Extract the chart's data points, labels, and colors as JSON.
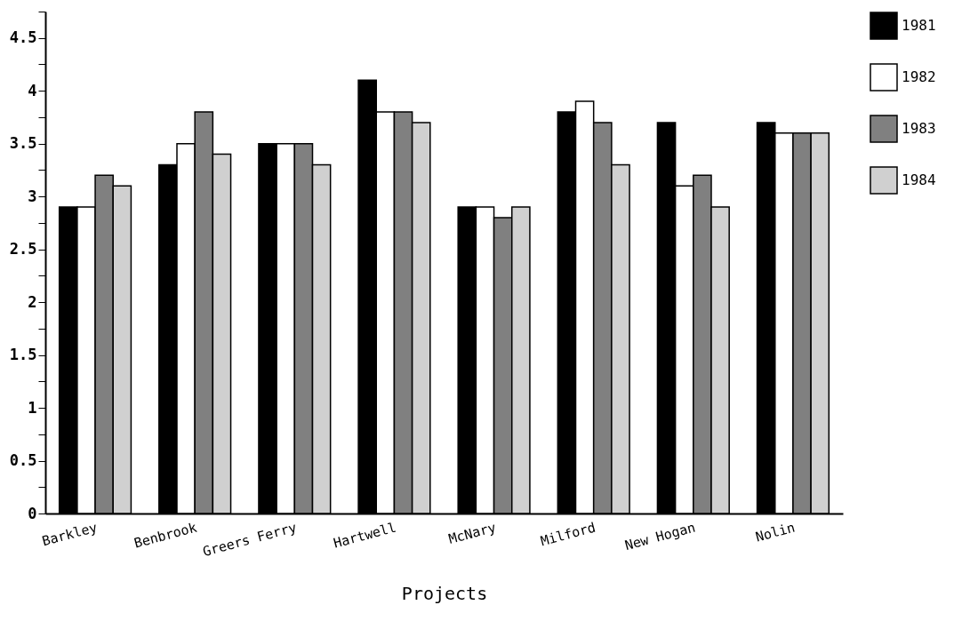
{
  "chart_data": {
    "type": "bar",
    "xlabel": "Projects",
    "categories": [
      "Barkley",
      "Benbrook",
      "Greers Ferry",
      "Hartwell",
      "McNary",
      "Milford",
      "New Hogan",
      "Nolin"
    ],
    "series": [
      {
        "name": "1981",
        "color": "#000000",
        "values": [
          2.9,
          3.3,
          3.5,
          4.1,
          2.9,
          3.8,
          3.7,
          3.7
        ]
      },
      {
        "name": "1982",
        "color": "#ffffff",
        "values": [
          2.9,
          3.5,
          3.5,
          3.8,
          2.9,
          3.9,
          3.1,
          3.6
        ]
      },
      {
        "name": "1983",
        "color": "#808080",
        "values": [
          3.2,
          3.8,
          3.5,
          3.8,
          2.8,
          3.7,
          3.2,
          3.6
        ]
      },
      {
        "name": "1984",
        "color": "#d0d0d0",
        "values": [
          3.1,
          3.4,
          3.3,
          3.7,
          2.9,
          3.3,
          2.9,
          3.6
        ]
      }
    ],
    "ylim": [
      0,
      4.75
    ],
    "yticks": [
      0,
      {
        "value": 0.25,
        "label": null
      },
      0.5,
      {
        "value": 0.75,
        "label": null
      },
      1,
      {
        "value": 1.25,
        "label": null
      },
      1.5,
      {
        "value": 1.75,
        "label": null
      },
      2,
      {
        "value": 2.25,
        "label": null
      },
      2.5,
      {
        "value": 2.75,
        "label": null
      },
      3,
      {
        "value": 3.25,
        "label": null
      },
      3.5,
      {
        "value": 3.75,
        "label": null
      },
      4,
      {
        "value": 4.25,
        "label": null
      },
      4.5,
      {
        "value": 4.75,
        "label": null
      }
    ],
    "grid": false,
    "legend": "top right"
  }
}
